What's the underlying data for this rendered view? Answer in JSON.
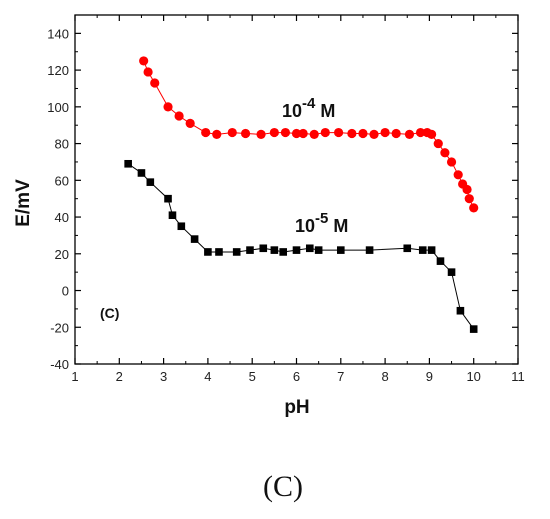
{
  "chart_data": {
    "type": "scatter",
    "xlabel": "pH",
    "ylabel": "E/mV",
    "xlim": [
      1,
      11
    ],
    "ylim": [
      -40,
      150
    ],
    "x_ticks": [
      1,
      2,
      3,
      4,
      5,
      6,
      7,
      8,
      9,
      10,
      11
    ],
    "y_ticks": [
      -40,
      -20,
      0,
      20,
      40,
      60,
      80,
      100,
      120,
      140
    ],
    "grid": false,
    "panel_label": "(C)",
    "series": [
      {
        "name": "10-4 M",
        "color": "#ff0000",
        "marker": "circle",
        "points": [
          [
            2.55,
            125
          ],
          [
            2.65,
            119
          ],
          [
            2.8,
            113
          ],
          [
            3.1,
            100
          ],
          [
            3.35,
            95
          ],
          [
            3.6,
            91
          ],
          [
            3.95,
            86
          ],
          [
            4.2,
            85
          ],
          [
            4.55,
            86
          ],
          [
            4.85,
            85.5
          ],
          [
            5.2,
            85
          ],
          [
            5.5,
            86
          ],
          [
            5.75,
            86
          ],
          [
            6.0,
            85.5
          ],
          [
            6.15,
            85.5
          ],
          [
            6.4,
            85
          ],
          [
            6.65,
            86
          ],
          [
            6.95,
            86
          ],
          [
            7.25,
            85.5
          ],
          [
            7.5,
            85.5
          ],
          [
            7.75,
            85
          ],
          [
            8.0,
            86
          ],
          [
            8.25,
            85.5
          ],
          [
            8.55,
            85
          ],
          [
            8.8,
            86
          ],
          [
            8.95,
            86
          ],
          [
            9.05,
            85
          ],
          [
            9.2,
            80
          ],
          [
            9.35,
            75
          ],
          [
            9.5,
            70
          ],
          [
            9.65,
            63
          ],
          [
            9.75,
            58
          ],
          [
            9.85,
            55
          ],
          [
            9.9,
            50
          ],
          [
            10.0,
            45
          ]
        ]
      },
      {
        "name": "10-5 M",
        "color": "#000000",
        "marker": "square",
        "points": [
          [
            2.2,
            69
          ],
          [
            2.5,
            64
          ],
          [
            2.7,
            59
          ],
          [
            3.1,
            50
          ],
          [
            3.2,
            41
          ],
          [
            3.4,
            35
          ],
          [
            3.7,
            28
          ],
          [
            4.0,
            21
          ],
          [
            4.25,
            21
          ],
          [
            4.65,
            21
          ],
          [
            4.95,
            22
          ],
          [
            5.25,
            23
          ],
          [
            5.5,
            22
          ],
          [
            5.7,
            21
          ],
          [
            6.0,
            22
          ],
          [
            6.3,
            23
          ],
          [
            6.5,
            22
          ],
          [
            7.0,
            22
          ],
          [
            7.65,
            22
          ],
          [
            8.5,
            23
          ],
          [
            8.85,
            22
          ],
          [
            9.05,
            22
          ],
          [
            9.25,
            16
          ],
          [
            9.5,
            10
          ],
          [
            9.7,
            -11
          ],
          [
            10.0,
            -21
          ]
        ]
      }
    ]
  },
  "labels": {
    "series1": {
      "base": "10",
      "exp": "-4",
      "unit": " M"
    },
    "series2": {
      "base": "10",
      "exp": "-5",
      "unit": " M"
    }
  },
  "caption": "(C)"
}
